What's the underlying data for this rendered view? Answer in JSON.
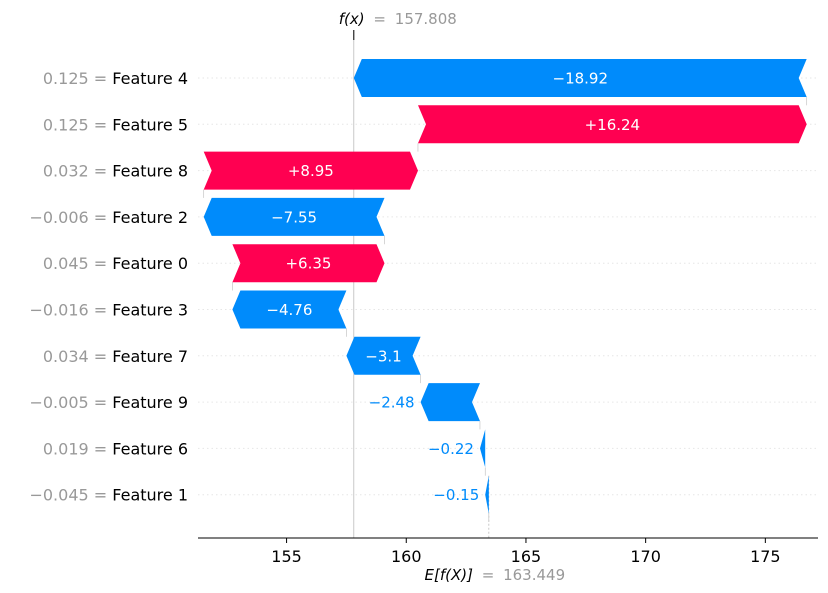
{
  "chart_data": {
    "type": "waterfall",
    "title": "",
    "xlabel": "",
    "ylabel": "",
    "fx": {
      "symbol": "f(x)",
      "equals": "=",
      "value": 157.808,
      "label": "157.808"
    },
    "efx": {
      "symbol": "E[f(X)]",
      "equals": "=",
      "value": 163.449,
      "label": "163.449"
    },
    "xlim": [
      151.3,
      177.2
    ],
    "xticks": [
      155,
      160,
      165,
      170,
      175
    ],
    "grid": "horizontal dotted",
    "colors": {
      "positive": "#ff0051",
      "negative": "#008bfb",
      "feature_value": "#999999"
    },
    "features": [
      {
        "name": "Feature 4",
        "value_text": "0.125",
        "contribution": -18.92,
        "label": "−18.92"
      },
      {
        "name": "Feature 5",
        "value_text": "0.125",
        "contribution": 16.24,
        "label": "+16.24"
      },
      {
        "name": "Feature 8",
        "value_text": "0.032",
        "contribution": 8.95,
        "label": "+8.95"
      },
      {
        "name": "Feature 2",
        "value_text": "−0.006",
        "contribution": -7.55,
        "label": "−7.55"
      },
      {
        "name": "Feature 0",
        "value_text": "0.045",
        "contribution": 6.35,
        "label": "+6.35"
      },
      {
        "name": "Feature 3",
        "value_text": "−0.016",
        "contribution": -4.76,
        "label": "−4.76"
      },
      {
        "name": "Feature 7",
        "value_text": "0.034",
        "contribution": -3.1,
        "label": "−3.1"
      },
      {
        "name": "Feature 9",
        "value_text": "−0.005",
        "contribution": -2.48,
        "label": "−2.48"
      },
      {
        "name": "Feature 6",
        "value_text": "0.019",
        "contribution": -0.22,
        "label": "−0.22"
      },
      {
        "name": "Feature 1",
        "value_text": "−0.045",
        "contribution": -0.15,
        "label": "−0.15"
      }
    ]
  }
}
